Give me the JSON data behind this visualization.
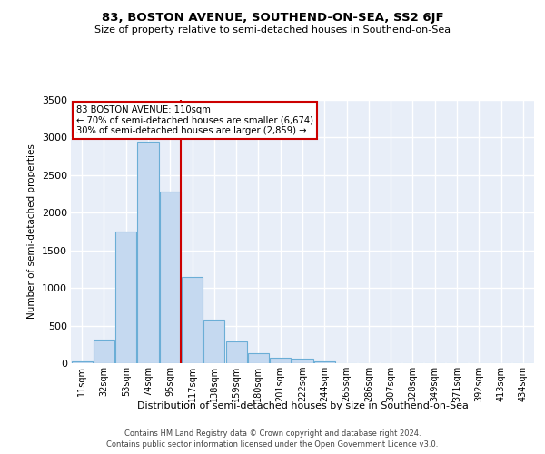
{
  "title": "83, BOSTON AVENUE, SOUTHEND-ON-SEA, SS2 6JF",
  "subtitle": "Size of property relative to semi-detached houses in Southend-on-Sea",
  "xlabel": "Distribution of semi-detached houses by size in Southend-on-Sea",
  "ylabel": "Number of semi-detached properties",
  "categories": [
    "11sqm",
    "32sqm",
    "53sqm",
    "74sqm",
    "95sqm",
    "117sqm",
    "138sqm",
    "159sqm",
    "180sqm",
    "201sqm",
    "222sqm",
    "244sqm",
    "265sqm",
    "286sqm",
    "307sqm",
    "328sqm",
    "349sqm",
    "371sqm",
    "392sqm",
    "413sqm",
    "434sqm"
  ],
  "values": [
    20,
    310,
    1750,
    2950,
    2280,
    1150,
    580,
    290,
    135,
    75,
    55,
    30,
    5,
    0,
    0,
    0,
    0,
    0,
    0,
    0,
    0
  ],
  "bar_color": "#c5d9f0",
  "bar_edgecolor": "#6baed6",
  "vline_x": 4.5,
  "vline_color": "#cc0000",
  "annotation_text": "83 BOSTON AVENUE: 110sqm\n← 70% of semi-detached houses are smaller (6,674)\n30% of semi-detached houses are larger (2,859) →",
  "annotation_box_color": "#ffffff",
  "annotation_box_edgecolor": "#cc0000",
  "ylim": [
    0,
    3500
  ],
  "yticks": [
    0,
    500,
    1000,
    1500,
    2000,
    2500,
    3000,
    3500
  ],
  "bg_color": "#e8eef8",
  "grid_color": "#ffffff",
  "footer1": "Contains HM Land Registry data © Crown copyright and database right 2024.",
  "footer2": "Contains public sector information licensed under the Open Government Licence v3.0."
}
